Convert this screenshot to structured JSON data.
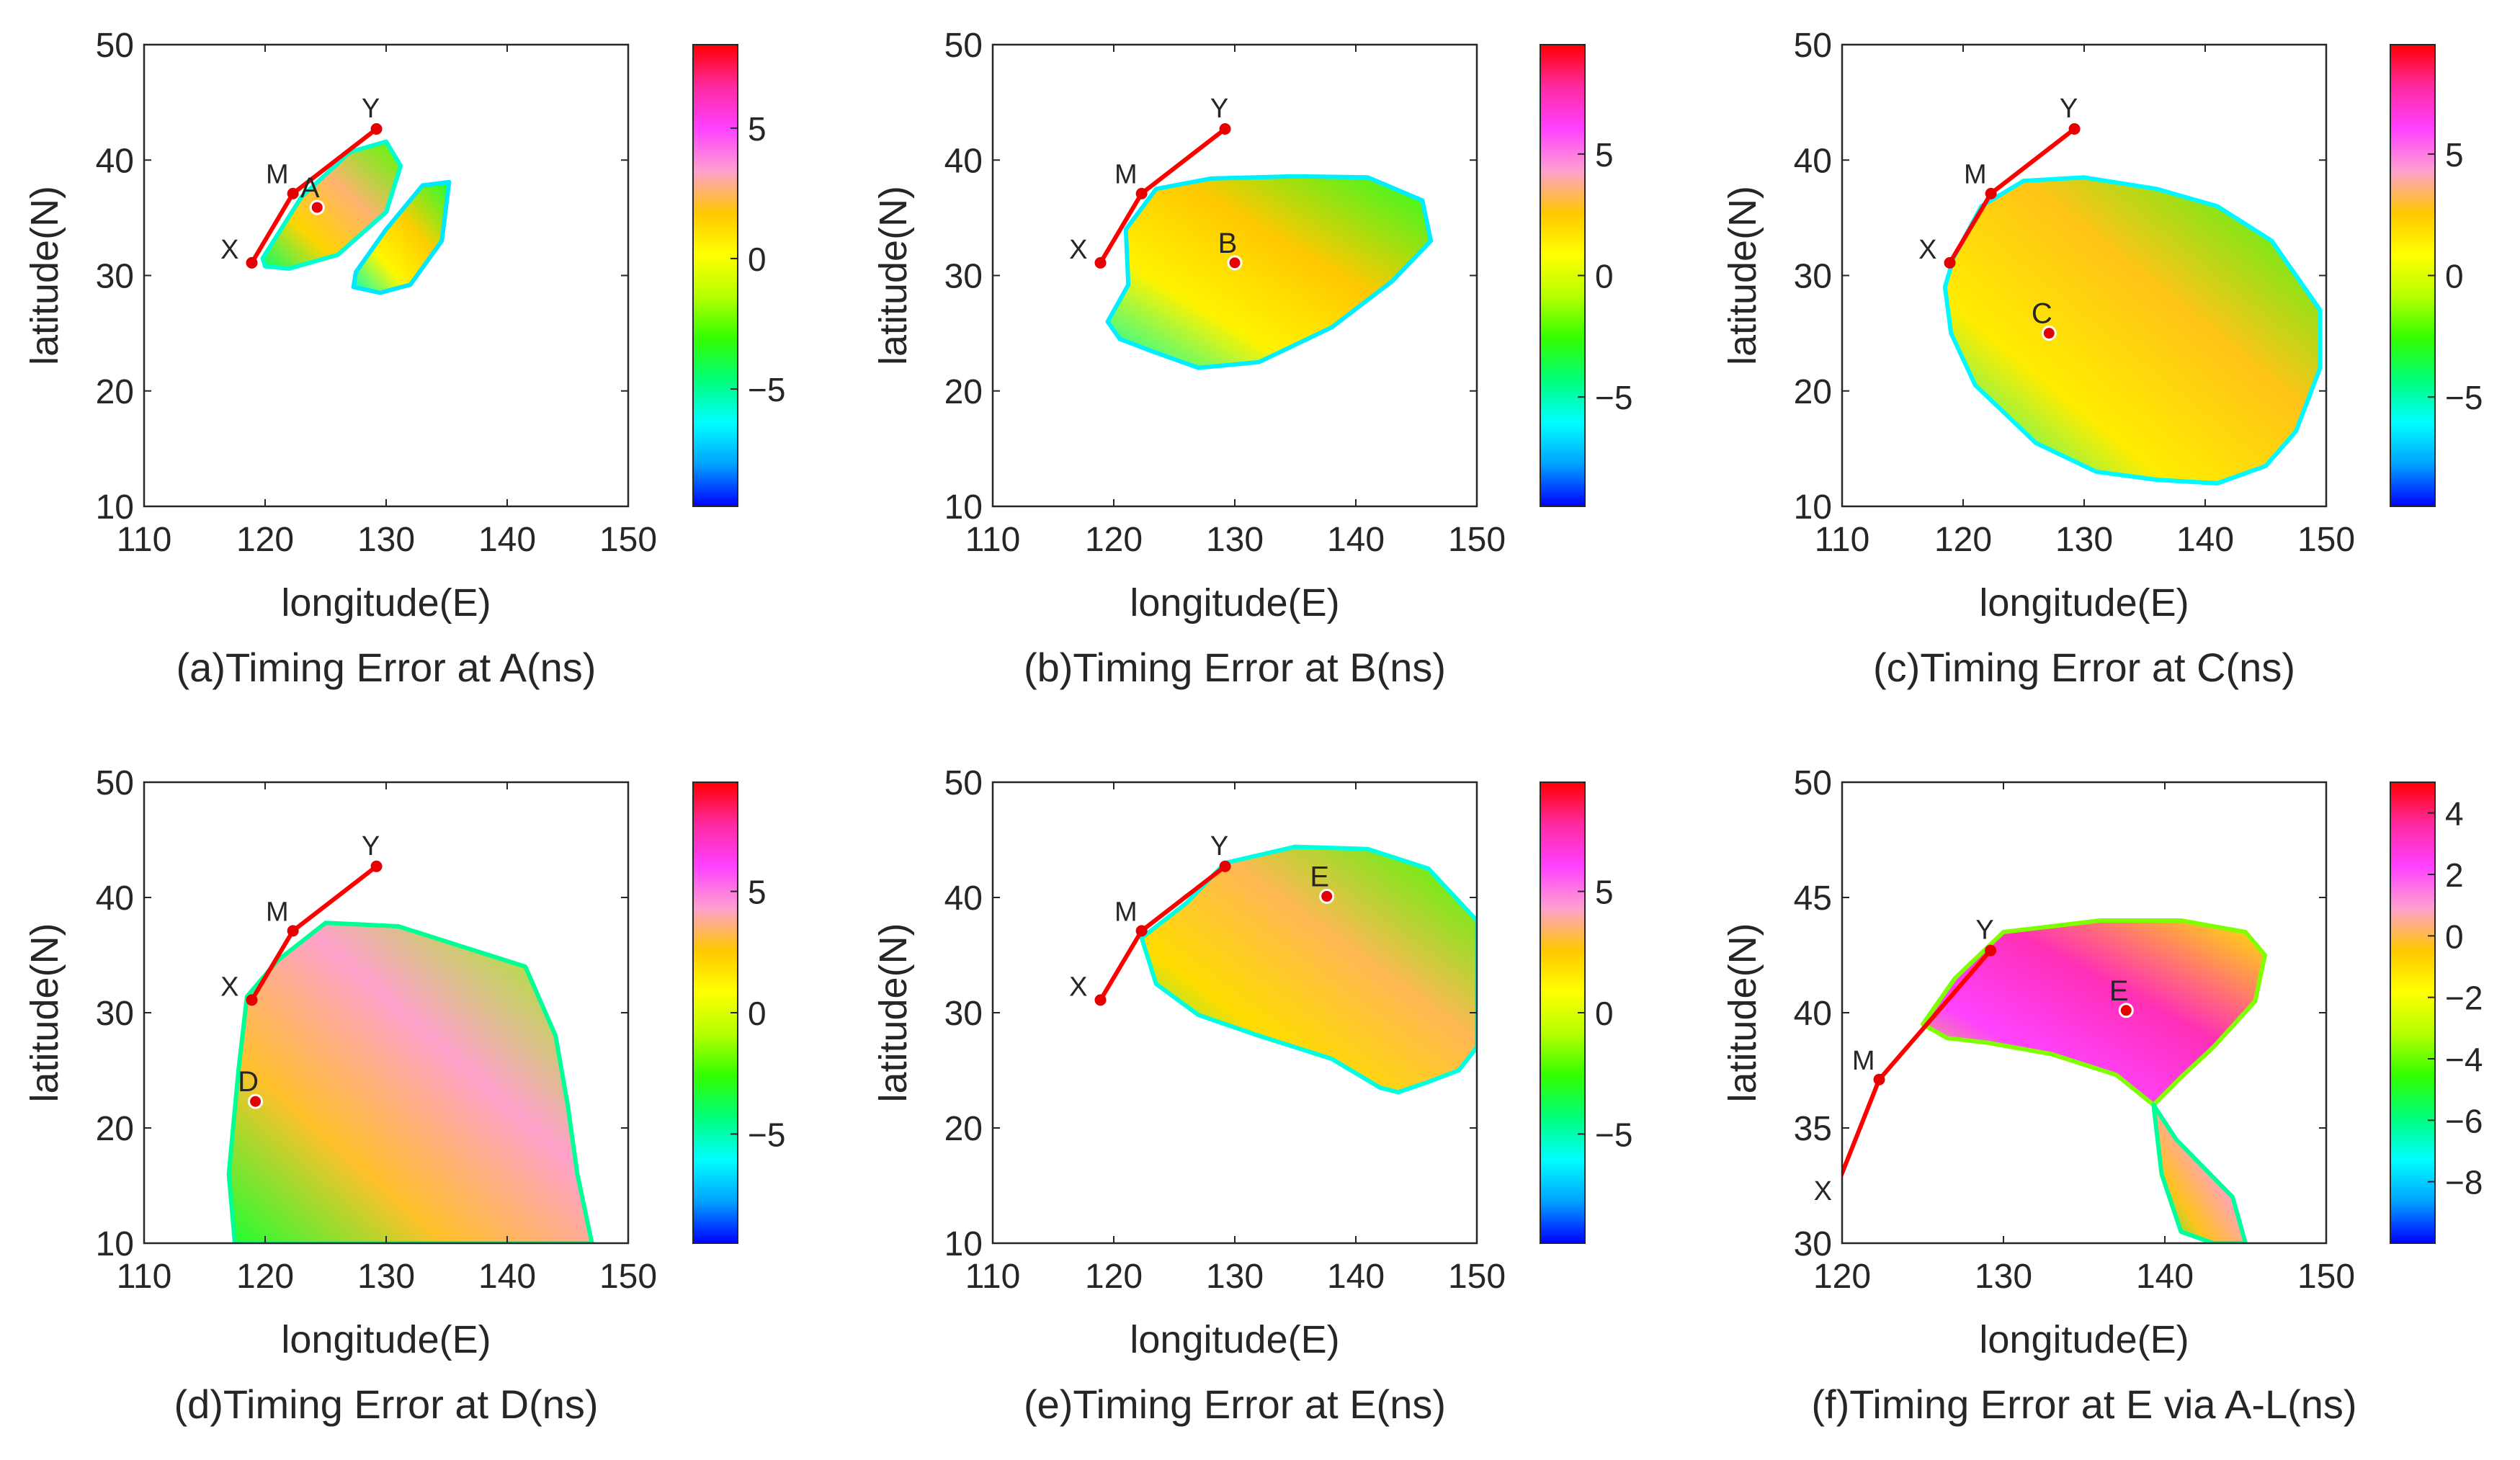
{
  "figure": {
    "colormap": [
      "#0000ff",
      "#00a2ff",
      "#00ffff",
      "#00ff7a",
      "#33ff00",
      "#b6ff00",
      "#ffff00",
      "#ffc800",
      "#ffa0d0",
      "#ff40ff",
      "#ff2aa0",
      "#ff0000"
    ],
    "line_color": "#ff0000",
    "point_color": "#e60000"
  },
  "chart_data": [
    {
      "id": "a",
      "type": "heatmap",
      "title": "(a)Timing Error at A(ns)",
      "xlabel": "longitude(E)",
      "ylabel": "latitude(N)",
      "xlim": [
        110,
        150
      ],
      "ylim": [
        10,
        50
      ],
      "xticks": [
        "110",
        "120",
        "130",
        "140",
        "150"
      ],
      "yticks": [
        "10",
        "20",
        "30",
        "40",
        "50"
      ],
      "colorbar": {
        "range": [
          -9.5,
          8.2
        ],
        "ticks": [
          -5,
          0,
          5
        ],
        "tick_labels": [
          "−5",
          "0",
          "5"
        ]
      },
      "route": [
        {
          "label": "X",
          "lon": 118.9,
          "lat": 31.1
        },
        {
          "label": "M",
          "lon": 122.3,
          "lat": 37.1
        },
        {
          "label": "Y",
          "lon": 129.2,
          "lat": 42.7
        }
      ],
      "point": {
        "label": "A",
        "lon": 124.3,
        "lat": 35.9
      },
      "regions": [
        {
          "lon": [
            119.8,
            123,
            127,
            130,
            131.2,
            130,
            126,
            122,
            120
          ],
          "lat": [
            31.5,
            36.8,
            40.7,
            41.6,
            39.5,
            35.5,
            31.8,
            30.6,
            30.8
          ],
          "value": 0.5
        },
        {
          "lon": [
            127.5,
            130,
            133,
            135.2,
            134.6,
            132,
            129.5,
            127.3
          ],
          "lat": [
            30.3,
            34,
            37.8,
            38.1,
            33,
            29.2,
            28.5,
            29
          ],
          "value": -0.5
        }
      ]
    },
    {
      "id": "b",
      "type": "heatmap",
      "title": "(b)Timing Error at B(ns)",
      "xlabel": "longitude(E)",
      "ylabel": "latitude(N)",
      "xlim": [
        110,
        150
      ],
      "ylim": [
        10,
        50
      ],
      "xticks": [
        "110",
        "120",
        "130",
        "140",
        "150"
      ],
      "yticks": [
        "10",
        "20",
        "30",
        "40",
        "50"
      ],
      "colorbar": {
        "range": [
          -9.5,
          9.5
        ],
        "ticks": [
          -5,
          0,
          5
        ],
        "tick_labels": [
          "−5",
          "0",
          "5"
        ]
      },
      "route": [
        {
          "label": "X",
          "lon": 118.9,
          "lat": 31.1
        },
        {
          "label": "M",
          "lon": 122.3,
          "lat": 37.1
        },
        {
          "label": "Y",
          "lon": 129.2,
          "lat": 42.7
        }
      ],
      "point": {
        "label": "B",
        "lon": 130.0,
        "lat": 31.1
      },
      "regions": [
        {
          "lon": [
            121,
            123.5,
            128,
            135,
            141,
            145.5,
            146.2,
            143,
            138,
            132,
            127,
            123,
            120.5,
            119.5,
            121.2,
            121
          ],
          "lat": [
            34,
            37.5,
            38.4,
            38.6,
            38.5,
            36.5,
            33,
            29.5,
            25.5,
            22.5,
            22,
            23.5,
            24.5,
            26,
            29.2,
            34
          ],
          "value": 0.3
        }
      ]
    },
    {
      "id": "c",
      "type": "heatmap",
      "title": "(c)Timing Error at C(ns)",
      "xlabel": "longitude(E)",
      "ylabel": "latitude(N)",
      "xlim": [
        110,
        150
      ],
      "ylim": [
        10,
        50
      ],
      "xticks": [
        "110",
        "120",
        "130",
        "140",
        "150"
      ],
      "yticks": [
        "10",
        "20",
        "30",
        "40",
        "50"
      ],
      "colorbar": {
        "range": [
          -9.5,
          9.5
        ],
        "ticks": [
          -5,
          0,
          5
        ],
        "tick_labels": [
          "−5",
          "0",
          "5"
        ]
      },
      "route": [
        {
          "label": "X",
          "lon": 118.9,
          "lat": 31.1
        },
        {
          "label": "M",
          "lon": 122.3,
          "lat": 37.1
        },
        {
          "label": "Y",
          "lon": 129.2,
          "lat": 42.7
        }
      ],
      "point": {
        "label": "C",
        "lon": 127.1,
        "lat": 25.0
      },
      "regions": [
        {
          "lon": [
            119.2,
            121.5,
            125,
            130,
            136,
            141,
            145.5,
            149.5,
            149.5,
            147.5,
            145,
            141,
            136,
            131,
            126,
            121,
            119,
            118.5,
            119.2
          ],
          "lat": [
            31.5,
            36,
            38.2,
            38.5,
            37.5,
            36,
            33,
            27,
            22,
            16.5,
            13.5,
            12,
            12.3,
            13,
            15.5,
            20.5,
            25,
            29,
            31.5
          ],
          "value": 0.5
        }
      ]
    },
    {
      "id": "d",
      "type": "heatmap",
      "title": "(d)Timing Error at D(ns)",
      "xlabel": "longitude(E)",
      "ylabel": "latitude(N)",
      "xlim": [
        110,
        150
      ],
      "ylim": [
        10,
        50
      ],
      "xticks": [
        "110",
        "120",
        "130",
        "140",
        "150"
      ],
      "yticks": [
        "10",
        "20",
        "30",
        "40",
        "50"
      ],
      "colorbar": {
        "range": [
          -9.5,
          9.5
        ],
        "ticks": [
          -5,
          0,
          5
        ],
        "tick_labels": [
          "−5",
          "0",
          "5"
        ]
      },
      "route": [
        {
          "label": "X",
          "lon": 118.9,
          "lat": 31.1
        },
        {
          "label": "M",
          "lon": 122.3,
          "lat": 37.1
        },
        {
          "label": "Y",
          "lon": 129.2,
          "lat": 42.7
        }
      ],
      "point": {
        "label": "D",
        "lon": 119.2,
        "lat": 22.3
      },
      "regions": [
        {
          "lon": [
            118.5,
            121,
            125,
            131,
            137,
            141.5,
            144,
            145,
            145.8,
            146.5,
            147,
            117.5,
            117,
            117.8,
            118.5
          ],
          "lat": [
            31.4,
            34.5,
            37.8,
            37.5,
            35.5,
            34,
            28,
            22,
            16,
            12.5,
            10,
            10,
            16,
            25,
            31.4
          ],
          "value": 2.0
        }
      ]
    },
    {
      "id": "e",
      "type": "heatmap",
      "title": "(e)Timing Error at E(ns)",
      "xlabel": "longitude(E)",
      "ylabel": "latitude(N)",
      "xlim": [
        110,
        150
      ],
      "ylim": [
        10,
        50
      ],
      "xticks": [
        "110",
        "120",
        "130",
        "140",
        "150"
      ],
      "yticks": [
        "10",
        "20",
        "30",
        "40",
        "50"
      ],
      "colorbar": {
        "range": [
          -9.5,
          9.5
        ],
        "ticks": [
          -5,
          0,
          5
        ],
        "tick_labels": [
          "−5",
          "0",
          "5"
        ]
      },
      "route": [
        {
          "label": "X",
          "lon": 118.9,
          "lat": 31.1
        },
        {
          "label": "M",
          "lon": 122.3,
          "lat": 37.1
        },
        {
          "label": "Y",
          "lon": 129.2,
          "lat": 42.7
        }
      ],
      "point": {
        "label": "E",
        "lon": 137.6,
        "lat": 40.1
      },
      "regions": [
        {
          "lon": [
            122.3,
            126,
            129.2,
            135,
            141,
            146,
            150,
            150,
            148.5,
            146,
            143.5,
            142,
            138,
            132,
            127,
            123.5,
            122.3
          ],
          "lat": [
            36.5,
            39.5,
            43,
            44.4,
            44.2,
            42.5,
            38,
            27,
            25,
            24,
            23.1,
            23.5,
            26,
            28,
            29.8,
            32.5,
            36.5
          ],
          "value": 1.0
        }
      ]
    },
    {
      "id": "f",
      "type": "heatmap",
      "title": "(f)Timing Error at E via A-L(ns)",
      "xlabel": "longitude(E)",
      "ylabel": "latitude(N)",
      "xlim": [
        120,
        150
      ],
      "ylim": [
        30,
        50
      ],
      "xticks": [
        "120",
        "130",
        "140",
        "150"
      ],
      "yticks": [
        "30",
        "35",
        "40",
        "45",
        "50"
      ],
      "colorbar": {
        "range": [
          -10,
          5
        ],
        "ticks": [
          -8,
          -6,
          -4,
          -2,
          0,
          2,
          4
        ],
        "tick_labels": [
          "−8",
          "−6",
          "−4",
          "−2",
          "0",
          "2",
          "4"
        ]
      },
      "route": [
        {
          "label": "X",
          "lon": 118.9,
          "lat": 31.1
        },
        {
          "label": "M",
          "lon": 122.3,
          "lat": 37.1
        },
        {
          "label": "Y",
          "lon": 129.2,
          "lat": 42.7
        }
      ],
      "point": {
        "label": "E",
        "lon": 137.6,
        "lat": 40.1
      },
      "regions": [
        {
          "lon": [
            125,
            127,
            130,
            136,
            141,
            145,
            146.2,
            145.6,
            143,
            141,
            139.3,
            137,
            133,
            129,
            126.5,
            125
          ],
          "lat": [
            39.5,
            41.5,
            43.5,
            44,
            44,
            43.5,
            42.5,
            40.5,
            38.5,
            37.2,
            36,
            37.3,
            38.2,
            38.7,
            38.9,
            39.5
          ],
          "value": 1.5
        },
        {
          "lon": [
            139.3,
            139.8,
            141,
            143,
            145,
            144.2,
            140.7,
            139.3
          ],
          "lat": [
            36,
            33,
            30.5,
            30,
            30,
            32,
            34.5,
            36
          ],
          "value": -1
        }
      ]
    }
  ]
}
